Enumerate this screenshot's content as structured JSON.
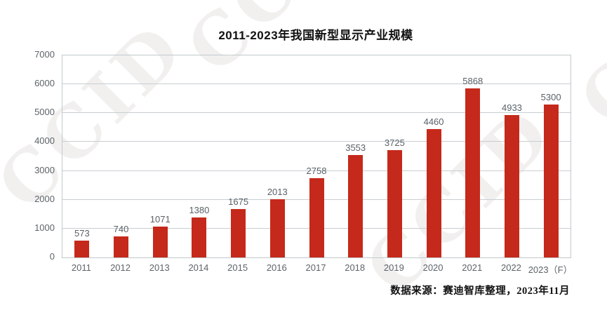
{
  "watermark": {
    "text": "CCID"
  },
  "chart_data": {
    "type": "bar",
    "title": "2011-2023年我国新型显示产业规模",
    "categories": [
      "2011",
      "2012",
      "2013",
      "2014",
      "2015",
      "2016",
      "2017",
      "2018",
      "2019",
      "2020",
      "2021",
      "2022",
      "2023（F）"
    ],
    "values": [
      573,
      740,
      1071,
      1380,
      1675,
      2013,
      2758,
      3553,
      3725,
      4460,
      5868,
      4933,
      5300
    ],
    "xlabel": "",
    "ylabel": "",
    "ylim": [
      0,
      7000
    ],
    "yticks": [
      0,
      1000,
      2000,
      3000,
      4000,
      5000,
      6000,
      7000
    ],
    "grid": true,
    "legend": false,
    "bar_color": "#c5291b",
    "grid_color": "#c9ced1",
    "axis_border_color": "#c3c9cc",
    "tick_label_color": "#5d6469",
    "value_label_color": "#5a6167"
  },
  "source_note": "数据来源：赛迪智库整理，2023年11月"
}
